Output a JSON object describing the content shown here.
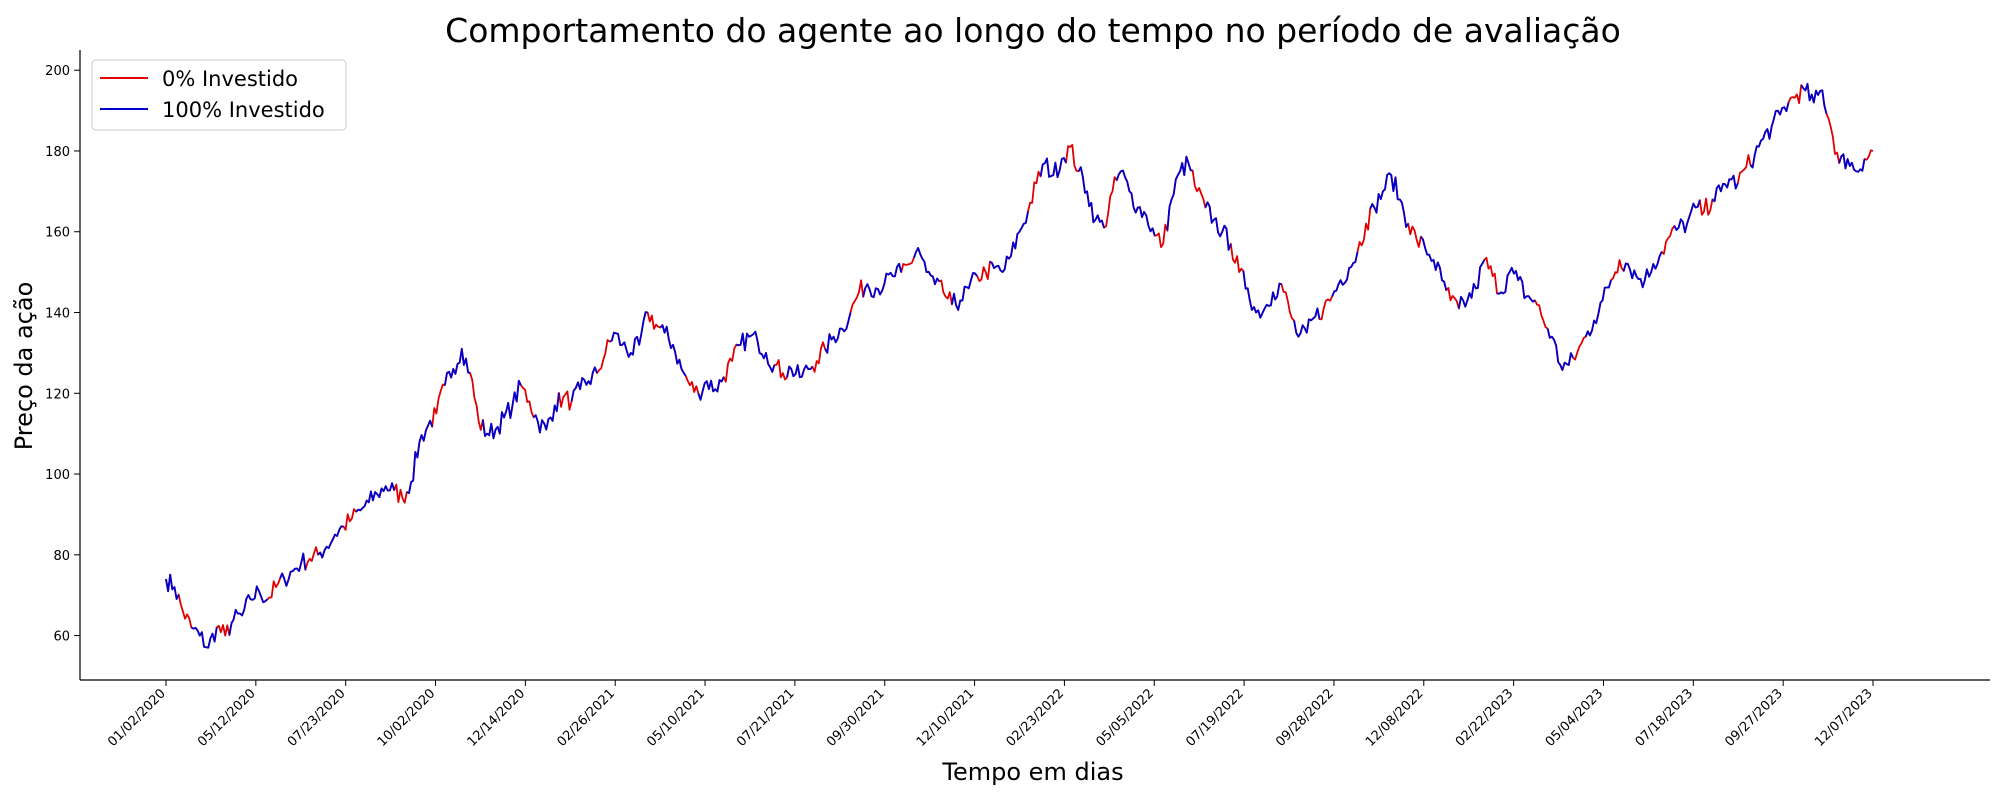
{
  "chart_data": {
    "type": "line",
    "title": "Comportamento do agente ao longo do tempo no período de avaliação",
    "xlabel": "Tempo em dias",
    "ylabel": "Preço da ação",
    "ylim": [
      49,
      205
    ],
    "x_tick_labels": [
      "01/02/2020",
      "05/12/2020",
      "07/23/2020",
      "10/02/2020",
      "12/14/2020",
      "02/26/2021",
      "05/10/2021",
      "07/21/2021",
      "09/30/2021",
      "12/10/2021",
      "02/23/2022",
      "05/05/2022",
      "07/19/2022",
      "09/28/2022",
      "12/08/2022",
      "02/22/2023",
      "05/04/2023",
      "07/18/2023",
      "09/27/2023",
      "12/07/2023"
    ],
    "y_ticks": [
      60,
      80,
      100,
      120,
      140,
      160,
      180,
      200
    ],
    "grid": false,
    "legend_position": "top-left",
    "total_days": 1010,
    "price_path": [
      [
        0,
        74
      ],
      [
        5,
        72
      ],
      [
        10,
        66
      ],
      [
        15,
        62
      ],
      [
        20,
        60
      ],
      [
        25,
        57
      ],
      [
        30,
        62
      ],
      [
        35,
        60
      ],
      [
        40,
        64
      ],
      [
        45,
        65
      ],
      [
        50,
        69
      ],
      [
        55,
        71
      ],
      [
        60,
        69
      ],
      [
        65,
        72
      ],
      [
        70,
        74
      ],
      [
        75,
        76
      ],
      [
        80,
        78
      ],
      [
        85,
        79
      ],
      [
        90,
        80
      ],
      [
        95,
        82
      ],
      [
        100,
        85
      ],
      [
        105,
        87
      ],
      [
        110,
        89
      ],
      [
        115,
        91
      ],
      [
        120,
        93
      ],
      [
        125,
        95
      ],
      [
        130,
        97
      ],
      [
        135,
        96
      ],
      [
        140,
        94
      ],
      [
        145,
        98
      ],
      [
        150,
        108
      ],
      [
        155,
        112
      ],
      [
        160,
        115
      ],
      [
        165,
        122
      ],
      [
        170,
        126
      ],
      [
        175,
        131
      ],
      [
        180,
        125
      ],
      [
        185,
        113
      ],
      [
        190,
        110
      ],
      [
        195,
        111
      ],
      [
        200,
        114
      ],
      [
        205,
        117
      ],
      [
        210,
        122
      ],
      [
        215,
        118
      ],
      [
        220,
        113
      ],
      [
        225,
        111
      ],
      [
        230,
        117
      ],
      [
        235,
        119
      ],
      [
        240,
        118
      ],
      [
        245,
        121
      ],
      [
        250,
        123
      ],
      [
        255,
        125
      ],
      [
        260,
        130
      ],
      [
        265,
        135
      ],
      [
        270,
        132
      ],
      [
        275,
        130
      ],
      [
        280,
        132
      ],
      [
        285,
        140
      ],
      [
        290,
        137
      ],
      [
        295,
        135
      ],
      [
        300,
        132
      ],
      [
        305,
        126
      ],
      [
        310,
        122
      ],
      [
        315,
        120
      ],
      [
        320,
        123
      ],
      [
        325,
        121
      ],
      [
        330,
        124
      ],
      [
        335,
        128
      ],
      [
        340,
        132
      ],
      [
        345,
        134
      ],
      [
        350,
        133
      ],
      [
        355,
        130
      ],
      [
        360,
        127
      ],
      [
        365,
        125
      ],
      [
        370,
        126
      ],
      [
        375,
        124
      ],
      [
        380,
        126
      ],
      [
        385,
        128
      ],
      [
        390,
        131
      ],
      [
        395,
        134
      ],
      [
        400,
        136
      ],
      [
        405,
        140
      ],
      [
        410,
        145
      ],
      [
        415,
        147
      ],
      [
        420,
        146
      ],
      [
        425,
        147
      ],
      [
        430,
        149
      ],
      [
        435,
        150
      ],
      [
        440,
        152
      ],
      [
        445,
        156
      ],
      [
        450,
        150
      ],
      [
        455,
        147
      ],
      [
        460,
        145
      ],
      [
        465,
        142
      ],
      [
        470,
        143
      ],
      [
        475,
        146
      ],
      [
        480,
        149
      ],
      [
        485,
        150
      ],
      [
        490,
        151
      ],
      [
        495,
        150
      ],
      [
        500,
        154
      ],
      [
        505,
        160
      ],
      [
        510,
        165
      ],
      [
        515,
        172
      ],
      [
        520,
        177
      ],
      [
        525,
        174
      ],
      [
        530,
        178
      ],
      [
        535,
        181
      ],
      [
        540,
        175
      ],
      [
        545,
        170
      ],
      [
        550,
        163
      ],
      [
        555,
        161
      ],
      [
        560,
        170
      ],
      [
        565,
        175
      ],
      [
        570,
        170
      ],
      [
        575,
        166
      ],
      [
        580,
        164
      ],
      [
        585,
        159
      ],
      [
        590,
        157
      ],
      [
        595,
        168
      ],
      [
        600,
        175
      ],
      [
        605,
        177
      ],
      [
        610,
        170
      ],
      [
        615,
        166
      ],
      [
        620,
        163
      ],
      [
        625,
        160
      ],
      [
        630,
        157
      ],
      [
        635,
        150
      ],
      [
        640,
        146
      ],
      [
        645,
        140
      ],
      [
        650,
        141
      ],
      [
        655,
        145
      ],
      [
        660,
        147
      ],
      [
        665,
        140
      ],
      [
        670,
        134
      ],
      [
        675,
        135
      ],
      [
        680,
        139
      ],
      [
        685,
        141
      ],
      [
        690,
        144
      ],
      [
        695,
        148
      ],
      [
        700,
        151
      ],
      [
        705,
        155
      ],
      [
        710,
        162
      ],
      [
        715,
        166
      ],
      [
        720,
        170
      ],
      [
        725,
        174
      ],
      [
        730,
        168
      ],
      [
        735,
        162
      ],
      [
        740,
        158
      ],
      [
        745,
        156
      ],
      [
        750,
        153
      ],
      [
        755,
        148
      ],
      [
        760,
        143
      ],
      [
        765,
        141
      ],
      [
        770,
        143
      ],
      [
        775,
        146
      ],
      [
        780,
        153
      ],
      [
        785,
        149
      ],
      [
        790,
        145
      ],
      [
        795,
        150
      ],
      [
        800,
        148
      ],
      [
        805,
        144
      ],
      [
        810,
        143
      ],
      [
        815,
        138
      ],
      [
        820,
        134
      ],
      [
        825,
        127
      ],
      [
        830,
        127
      ],
      [
        835,
        130
      ],
      [
        840,
        134
      ],
      [
        845,
        138
      ],
      [
        850,
        143
      ],
      [
        855,
        148
      ],
      [
        860,
        153
      ],
      [
        865,
        152
      ],
      [
        870,
        149
      ],
      [
        875,
        148
      ],
      [
        880,
        152
      ],
      [
        885,
        155
      ],
      [
        890,
        159
      ],
      [
        895,
        161
      ],
      [
        900,
        162
      ],
      [
        905,
        166
      ],
      [
        910,
        165
      ],
      [
        915,
        168
      ],
      [
        920,
        170
      ],
      [
        925,
        173
      ],
      [
        930,
        172
      ],
      [
        935,
        176
      ],
      [
        940,
        179
      ],
      [
        945,
        183
      ],
      [
        950,
        186
      ],
      [
        955,
        189
      ],
      [
        960,
        192
      ],
      [
        965,
        194
      ],
      [
        970,
        195
      ],
      [
        975,
        192
      ],
      [
        980,
        195
      ],
      [
        985,
        186
      ],
      [
        990,
        177
      ],
      [
        995,
        178
      ],
      [
        1000,
        175
      ],
      [
        1005,
        178
      ],
      [
        1010,
        180
      ]
    ],
    "series": [
      {
        "name": "0% Investido",
        "color": "#e00000"
      },
      {
        "name": "100% Investido",
        "color": "#0000cc"
      }
    ]
  }
}
